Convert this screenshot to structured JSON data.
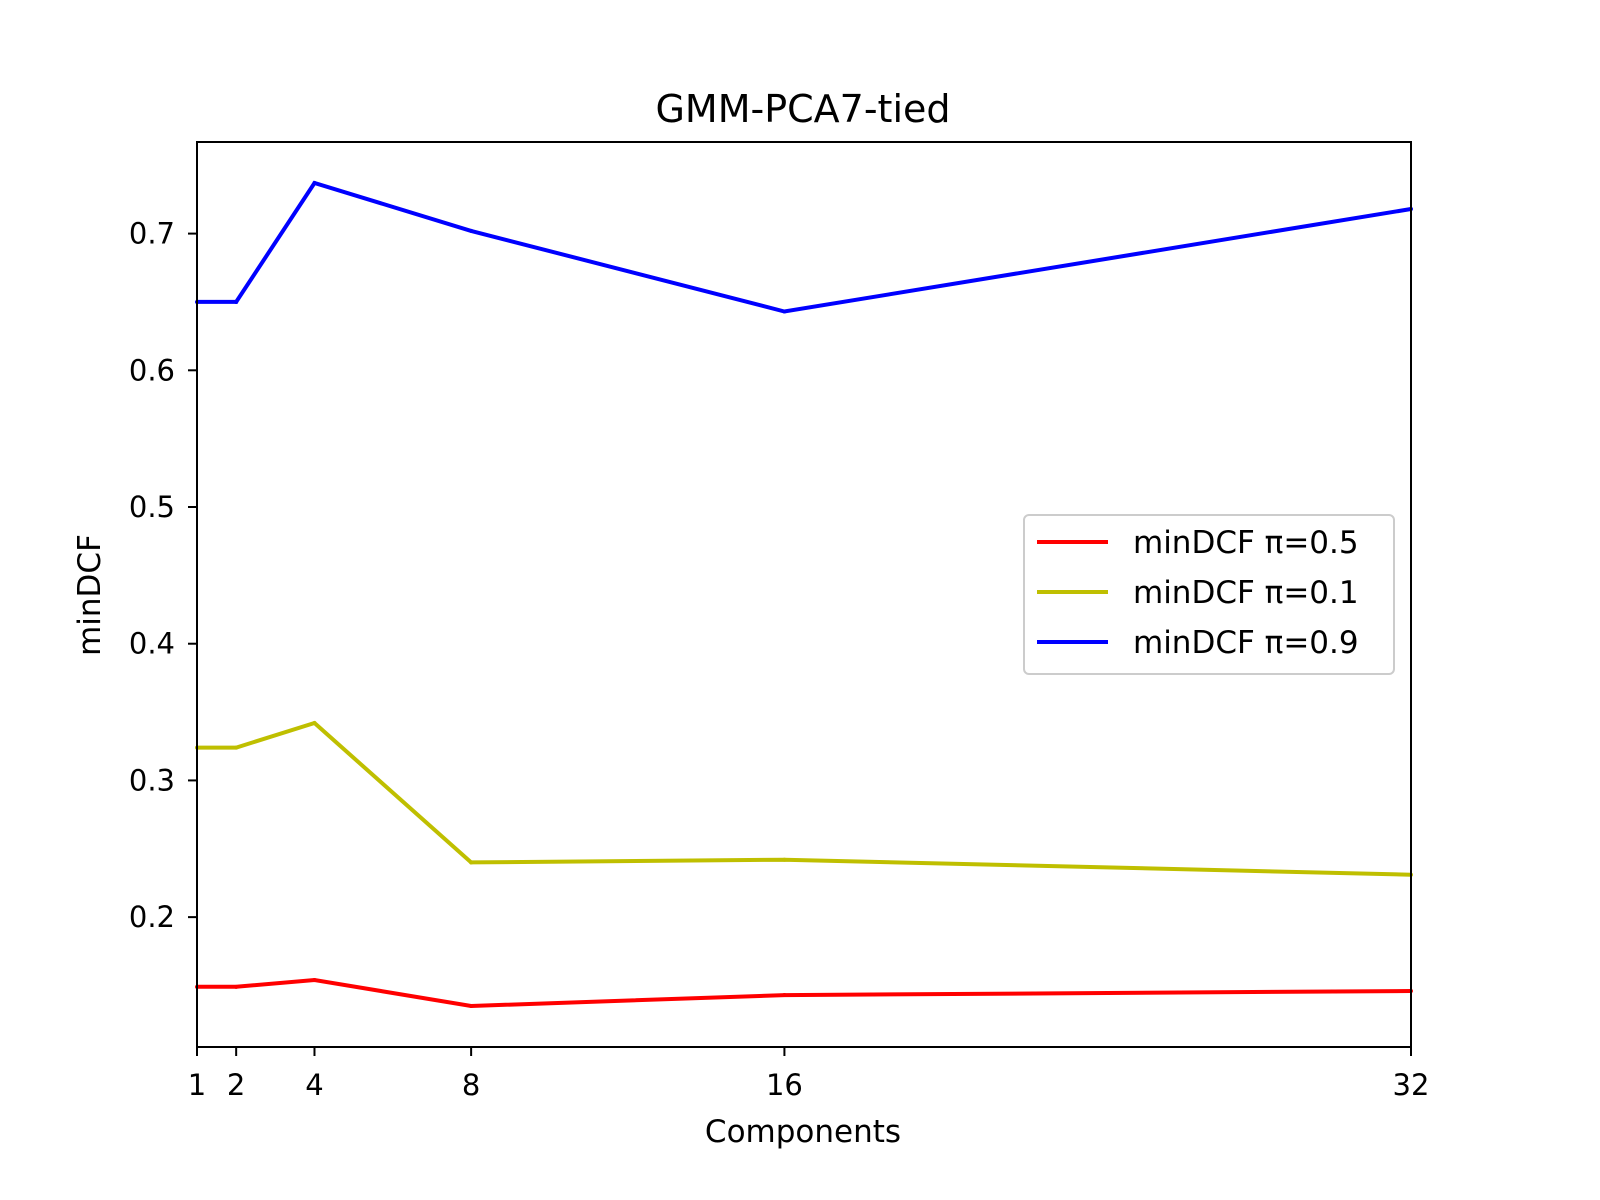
{
  "chart_data": {
    "type": "line",
    "title": "GMM-PCA7-tied",
    "xlabel": "Components",
    "ylabel": "minDCF",
    "x": [
      1,
      2,
      4,
      8,
      16,
      32
    ],
    "xtick_labels": [
      "1",
      "2",
      "4",
      "8",
      "16",
      "32"
    ],
    "xlim": [
      1,
      32
    ],
    "ylim": [
      0.105,
      0.767
    ],
    "yticks": [
      0.2,
      0.3,
      0.4,
      0.5,
      0.6,
      0.7
    ],
    "ytick_labels": [
      "0.2",
      "0.3",
      "0.4",
      "0.5",
      "0.6",
      "0.7"
    ],
    "grid": false,
    "legend_position": "center-right",
    "series": [
      {
        "name": "minDCF π=0.5",
        "color": "#ff0000",
        "values": [
          0.149,
          0.149,
          0.154,
          0.135,
          0.143,
          0.146
        ]
      },
      {
        "name": "minDCF π=0.1",
        "color": "#bfbf00",
        "values": [
          0.324,
          0.324,
          0.342,
          0.24,
          0.242,
          0.231
        ]
      },
      {
        "name": "minDCF π=0.9",
        "color": "#0000ff",
        "values": [
          0.65,
          0.65,
          0.737,
          0.702,
          0.643,
          0.718
        ]
      }
    ]
  }
}
